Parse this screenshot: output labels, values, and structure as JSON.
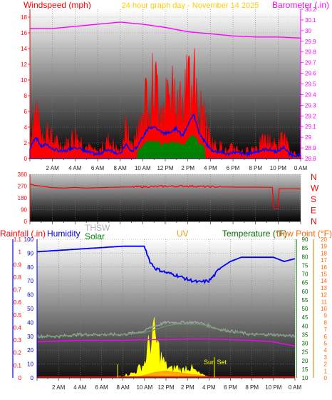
{
  "header": {
    "left_title": "Windspeed (mph)",
    "center_title": "24 hour graph day - November 14 2025",
    "right_title": "Barometer (.in)"
  },
  "colors": {
    "wind": "#ff0000",
    "wind_avg": "#0000ff",
    "gust": "#008000",
    "barometer": "#ff00ff",
    "rain": "#ff0000",
    "humidity": "#0000cc",
    "thsw": "#a0a0a0",
    "solar": "#008000",
    "uv": "#ff9900",
    "temperature": "#006600",
    "dewpoint": "#ff6600",
    "sun": "#ffff00"
  },
  "time_axis": [
    "2 AM",
    "4 AM",
    "6 AM",
    "8 AM",
    "10 AM",
    "12 PM",
    "2 PM",
    "4 PM",
    "6 PM",
    "8 PM",
    "10 PM",
    "0 AM"
  ],
  "panel1": {
    "left_ticks": [
      "0",
      "2",
      "4",
      "6",
      "8",
      "10",
      "12",
      "14",
      "16",
      "18"
    ],
    "right_ticks": [
      "28.8",
      "28.9",
      "29",
      "29.1",
      "29.2",
      "29.3",
      "29.4",
      "29.5",
      "29.6",
      "29.7",
      "29.8",
      "29.9",
      "30",
      "30.1",
      "30.2"
    ]
  },
  "panel2": {
    "ticks": [
      "0",
      "90",
      "180",
      "270",
      "360"
    ],
    "compass": [
      "N",
      "W",
      "S",
      "E",
      "N"
    ]
  },
  "panel3": {
    "labels": {
      "rain": "Rainfall (.in)",
      "humidity": "Humidity",
      "thsw": "THSW",
      "solar": "Solar",
      "uv": "UV",
      "temperature": "Temperature (°F)",
      "dewpoint": "Dew Point (°F)"
    },
    "rain_ticks": [
      "0",
      "0.1",
      "0.2",
      "0.3",
      "0.4",
      "0.5",
      "0.6",
      "0.7",
      "0.8",
      "0.9",
      "1",
      "1.1"
    ],
    "humidity_ticks": [
      "0",
      "10",
      "20",
      "30",
      "40",
      "50",
      "60",
      "70",
      "80",
      "90",
      "100"
    ],
    "temp_ticks": [
      "10",
      "15",
      "20",
      "25",
      "30",
      "35",
      "40",
      "45",
      "50",
      "55",
      "60",
      "65",
      "70",
      "75",
      "80",
      "85",
      "90"
    ],
    "dew_ticks": [
      "0",
      "1",
      "2",
      "3",
      "4",
      "5",
      "6",
      "7",
      "8",
      "9",
      "10",
      "11",
      "12",
      "13",
      "14",
      "15",
      "16",
      "17",
      "18",
      "19",
      "20"
    ],
    "sunset_label": "Sun Set"
  },
  "chart_data": [
    {
      "type": "line",
      "title": "24 hour graph day - November 14 2025",
      "xlabel": "",
      "x_range_hours": [
        0,
        24
      ],
      "series": [
        {
          "name": "Windspeed (mph)",
          "axis": "left",
          "ylim": [
            0,
            19
          ],
          "x": [
            0,
            0.5,
            1,
            1.5,
            2,
            3,
            4,
            5,
            6,
            7,
            8,
            8.5,
            9,
            9.5,
            10,
            10.5,
            11,
            11.5,
            12,
            12.5,
            13,
            13.5,
            14,
            14.5,
            15,
            15.5,
            16,
            16.5,
            17,
            17.5,
            18,
            19,
            20,
            21,
            22,
            22.5,
            23,
            24
          ],
          "y": [
            3,
            8,
            4,
            5,
            3,
            2,
            4,
            2,
            1,
            3,
            1,
            5,
            2,
            4,
            8,
            11,
            12,
            10,
            9,
            10,
            11,
            8,
            12,
            17,
            9,
            6,
            3,
            2,
            2,
            1,
            2,
            1,
            2,
            3,
            2,
            4,
            1,
            0.5
          ]
        },
        {
          "name": "Barometer (.in)",
          "axis": "right",
          "ylim": [
            28.8,
            30.2
          ],
          "x": [
            0,
            2,
            4,
            6,
            8,
            10,
            12,
            14,
            16,
            18,
            20,
            22,
            24
          ],
          "y": [
            30.02,
            30.02,
            30.04,
            30.06,
            30.08,
            30.06,
            30.03,
            29.99,
            29.97,
            29.95,
            29.94,
            29.94,
            29.93
          ]
        }
      ]
    },
    {
      "type": "line",
      "title": "",
      "ylim": [
        0,
        360
      ],
      "series": [
        {
          "name": "",
          "x": [
            0,
            0.5,
            1,
            2,
            3,
            4,
            5,
            6,
            8,
            10,
            12,
            14,
            16,
            18,
            20,
            21.5,
            21.6,
            22,
            22.1,
            24
          ],
          "y": [
            285,
            275,
            270,
            258,
            255,
            260,
            255,
            258,
            262,
            265,
            268,
            270,
            265,
            262,
            262,
            260,
            100,
            100,
            250,
            250
          ]
        }
      ]
    },
    {
      "type": "line",
      "title": "",
      "series": [
        {
          "name": "Humidity",
          "axis": "humidity",
          "ylim": [
            0,
            100
          ],
          "x": [
            0,
            2,
            4,
            6,
            8,
            9,
            10,
            10.5,
            11,
            12,
            13,
            14,
            15,
            16,
            16.5,
            17,
            18,
            19,
            20,
            22,
            23,
            24
          ],
          "y": [
            91,
            92,
            93,
            94,
            95,
            95,
            95,
            84,
            79,
            76,
            74,
            71,
            69,
            70,
            74,
            79,
            84,
            87,
            87,
            87,
            84,
            86
          ]
        },
        {
          "name": "THSW",
          "axis": "temp",
          "ylim": [
            10,
            90
          ],
          "x": [
            0,
            2,
            4,
            6,
            8,
            9,
            10,
            10.5,
            11,
            12,
            13,
            14,
            15,
            16,
            17,
            18,
            20,
            22,
            24
          ],
          "y": [
            34,
            34,
            35,
            35,
            35,
            36,
            37,
            39,
            40,
            42,
            42,
            42,
            42,
            40,
            38,
            37,
            35,
            35,
            34
          ]
        },
        {
          "name": "Temperature (°F)",
          "axis": "temp",
          "ylim": [
            10,
            90
          ],
          "x": [
            0,
            2,
            4,
            6,
            8,
            10,
            11,
            12,
            13,
            14,
            15,
            16,
            17,
            18,
            20,
            22,
            24
          ],
          "y": [
            34,
            34,
            35,
            35,
            35,
            36,
            38,
            40,
            41,
            41,
            41,
            40,
            38,
            37,
            35,
            35,
            34
          ]
        },
        {
          "name": "Dew Point (°F)",
          "axis": "dew",
          "ylim": [
            0,
            20
          ],
          "x": [
            0,
            2,
            4,
            6,
            8,
            10,
            12,
            14,
            16,
            18,
            20,
            22,
            24
          ],
          "y": [
            5.2,
            5.3,
            5.4,
            5.4,
            5.4,
            5.5,
            5.5,
            5.6,
            5.6,
            5.5,
            5.4,
            5.2,
            4.6
          ]
        },
        {
          "name": "Solar",
          "axis": "humidity",
          "ylim": [
            0,
            100
          ],
          "x": [
            7,
            8,
            9,
            10,
            10.5,
            10.8,
            11,
            11.5,
            12,
            12.5,
            13,
            13.5,
            14,
            14.5,
            15,
            15.5,
            16
          ],
          "y": [
            0,
            2,
            4,
            12,
            30,
            36,
            33,
            18,
            10,
            7,
            9,
            6,
            10,
            7,
            4,
            2,
            0
          ]
        },
        {
          "name": "UV",
          "axis": "humidity",
          "ylim": [
            0,
            100
          ],
          "x": [
            0,
            9,
            10,
            11,
            12,
            13,
            14,
            15,
            16,
            17,
            24
          ],
          "y": [
            0,
            0,
            2,
            4,
            5,
            4,
            3,
            2,
            1,
            0,
            0
          ]
        },
        {
          "name": "Rainfall (.in)",
          "axis": "rain",
          "ylim": [
            0,
            1.1
          ],
          "x": [
            0,
            24
          ],
          "y": [
            0,
            0
          ]
        }
      ]
    }
  ]
}
